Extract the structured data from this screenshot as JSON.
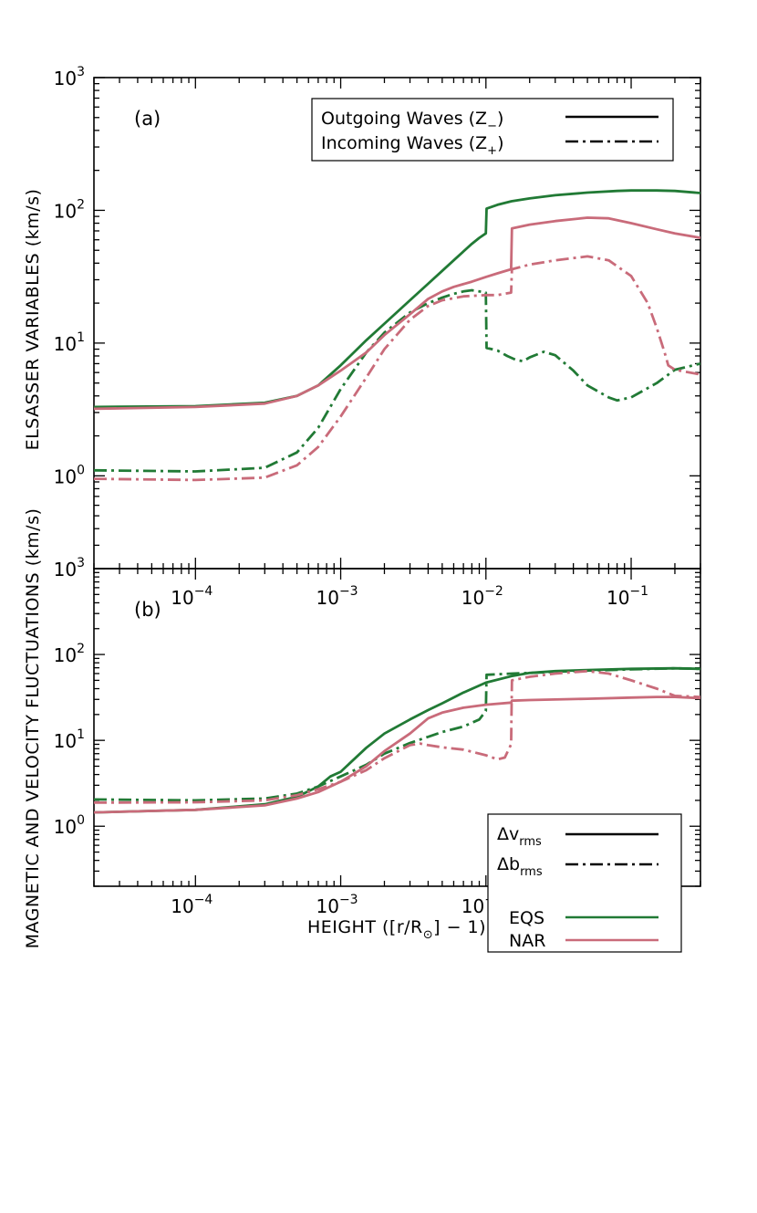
{
  "chart_data": [
    {
      "panel": "a",
      "type": "line",
      "panel_label": "(a)",
      "ylabel": "ELSASSER VARIABLES (km/s)",
      "xlabel": "",
      "xscale": "log",
      "yscale": "log",
      "xlim": [
        2e-05,
        0.3
      ],
      "ylim": [
        0.2,
        1000
      ],
      "y_tick_labels": [
        {
          "base": "10",
          "exp": "0"
        },
        {
          "base": "10",
          "exp": "1"
        },
        {
          "base": "10",
          "exp": "2"
        },
        {
          "base": "10",
          "exp": "3"
        }
      ],
      "x_tick_labels": [
        {
          "base": "10",
          "exp": "-4"
        },
        {
          "base": "10",
          "exp": "-3"
        },
        {
          "base": "10",
          "exp": "-2"
        },
        {
          "base": "10",
          "exp": "-1"
        }
      ],
      "legend": {
        "placement": "top-right",
        "entries": [
          {
            "text": "Outgoing Waves (Z",
            "sub": "−",
            "tail": ")",
            "linestyle": "solid"
          },
          {
            "text": "Incoming Waves (Z",
            "sub": "+",
            "tail": ")",
            "linestyle": "dashdot"
          }
        ]
      },
      "series": [
        {
          "model": "EQS",
          "kind": "Z-",
          "color": "#217a35",
          "linestyle": "solid",
          "x": [
            2e-05,
            0.0001,
            0.0003,
            0.0005,
            0.0007,
            0.001,
            0.0015,
            0.002,
            0.003,
            0.004,
            0.005,
            0.006,
            0.007,
            0.008,
            0.009,
            0.00999,
            0.0101,
            0.012,
            0.015,
            0.02,
            0.03,
            0.05,
            0.08,
            0.1,
            0.15,
            0.2,
            0.3
          ],
          "y": [
            3.3,
            3.35,
            3.55,
            4.0,
            4.8,
            6.8,
            10.5,
            14.0,
            21.0,
            28.0,
            35.0,
            42.0,
            49.0,
            56.0,
            62.0,
            67.0,
            103.0,
            110.0,
            117.0,
            123.0,
            130.0,
            136.0,
            140.0,
            141.0,
            141.0,
            140.0,
            135.0
          ]
        },
        {
          "model": "EQS",
          "kind": "Z+",
          "color": "#217a35",
          "linestyle": "dashdot",
          "x": [
            2e-05,
            0.0001,
            0.0003,
            0.0005,
            0.0007,
            0.001,
            0.0015,
            0.002,
            0.003,
            0.004,
            0.005,
            0.006,
            0.007,
            0.008,
            0.009,
            0.00999,
            0.0101,
            0.012,
            0.014,
            0.016,
            0.018,
            0.02,
            0.025,
            0.03,
            0.04,
            0.05,
            0.07,
            0.08,
            0.1,
            0.15,
            0.2,
            0.3
          ],
          "y": [
            1.1,
            1.08,
            1.15,
            1.5,
            2.3,
            4.5,
            8.5,
            12.0,
            17.0,
            20.0,
            22.0,
            23.5,
            24.5,
            25.0,
            24.5,
            24.0,
            9.2,
            8.8,
            8.0,
            7.5,
            7.3,
            7.8,
            8.6,
            8.1,
            6.2,
            4.8,
            3.9,
            3.7,
            3.9,
            5.0,
            6.3,
            7.0
          ]
        },
        {
          "model": "NAR",
          "kind": "Z-",
          "color": "#c96b7a",
          "linestyle": "solid",
          "x": [
            2e-05,
            0.0001,
            0.0003,
            0.0005,
            0.0007,
            0.001,
            0.0015,
            0.002,
            0.003,
            0.004,
            0.005,
            0.006,
            0.008,
            0.01,
            0.012,
            0.0149,
            0.0151,
            0.02,
            0.03,
            0.05,
            0.07,
            0.1,
            0.15,
            0.2,
            0.3
          ],
          "y": [
            3.2,
            3.3,
            3.5,
            4.0,
            4.8,
            6.2,
            8.5,
            11.5,
            16.5,
            21.5,
            24.5,
            26.5,
            29.0,
            31.5,
            33.5,
            36.0,
            73.0,
            78.0,
            83.0,
            88.0,
            87.0,
            80.0,
            72.0,
            67.0,
            62.0
          ]
        },
        {
          "model": "NAR",
          "kind": "Z+",
          "color": "#c96b7a",
          "linestyle": "dashdot",
          "x": [
            2e-05,
            0.0001,
            0.0003,
            0.0005,
            0.0007,
            0.001,
            0.0015,
            0.002,
            0.003,
            0.004,
            0.005,
            0.007,
            0.01,
            0.012,
            0.0149,
            0.0151,
            0.02,
            0.03,
            0.05,
            0.07,
            0.1,
            0.13,
            0.15,
            0.17,
            0.18,
            0.2,
            0.3
          ],
          "y": [
            0.95,
            0.93,
            0.97,
            1.2,
            1.65,
            2.8,
            5.5,
            9.0,
            15.0,
            19.0,
            21.0,
            22.5,
            23.0,
            23.0,
            24.0,
            36.0,
            39.0,
            42.0,
            45.0,
            42.0,
            32.0,
            20.0,
            13.0,
            8.5,
            6.8,
            6.3,
            5.8
          ]
        }
      ]
    },
    {
      "panel": "b",
      "type": "line",
      "panel_label": "(b)",
      "ylabel": "MAGNETIC AND VELOCITY FLUCTUATIONS (km/s)",
      "xlabel": "HEIGHT ([r/R",
      "xlabel_sun": "⊙",
      "xlabel_tail": "] − 1)",
      "xscale": "log",
      "yscale": "log",
      "xlim": [
        2e-05,
        0.3
      ],
      "ylim": [
        0.2,
        1000
      ],
      "y_tick_labels": [
        {
          "base": "10",
          "exp": "0"
        },
        {
          "base": "10",
          "exp": "1"
        },
        {
          "base": "10",
          "exp": "2"
        },
        {
          "base": "10",
          "exp": "3"
        }
      ],
      "x_tick_labels": [
        {
          "base": "10",
          "exp": "-4"
        },
        {
          "base": "10",
          "exp": "-3"
        },
        {
          "base": "10",
          "exp": "-2"
        },
        {
          "base": "10",
          "exp": "-1"
        }
      ],
      "legend_style": {
        "placement": "bottom-right",
        "entries": [
          {
            "text": "Δv",
            "sub": "rms",
            "linestyle": "solid"
          },
          {
            "text": "Δb",
            "sub": "rms",
            "linestyle": "dashdot"
          }
        ]
      },
      "legend_model": {
        "entries": [
          {
            "text": "EQS",
            "color": "#217a35"
          },
          {
            "text": "NAR",
            "color": "#c96b7a"
          }
        ]
      },
      "series": [
        {
          "model": "EQS",
          "kind": "dv_rms",
          "color": "#217a35",
          "linestyle": "solid",
          "x": [
            2e-05,
            0.0001,
            0.0003,
            0.0005,
            0.0007,
            0.00085,
            0.001,
            0.0015,
            0.002,
            0.003,
            0.004,
            0.005,
            0.007,
            0.01,
            0.015,
            0.02,
            0.03,
            0.05,
            0.1,
            0.2,
            0.3
          ],
          "y": [
            1.45,
            1.55,
            1.8,
            2.2,
            2.9,
            3.8,
            4.3,
            8.2,
            12.0,
            17.5,
            22.5,
            27.0,
            36.0,
            47.0,
            56.0,
            61.0,
            64.0,
            66.0,
            68.0,
            69.0,
            68.0
          ]
        },
        {
          "model": "EQS",
          "kind": "db_rms",
          "color": "#217a35",
          "linestyle": "dashdot",
          "x": [
            2e-05,
            0.0001,
            0.0003,
            0.0005,
            0.0007,
            0.001,
            0.0015,
            0.002,
            0.003,
            0.004,
            0.005,
            0.007,
            0.009,
            0.00999,
            0.0101,
            0.015,
            0.02,
            0.03,
            0.05,
            0.1,
            0.2,
            0.3
          ],
          "y": [
            2.05,
            2.0,
            2.1,
            2.4,
            2.9,
            3.8,
            5.2,
            7.0,
            9.3,
            11.0,
            12.5,
            14.5,
            17.5,
            22.0,
            58.0,
            60.0,
            61.0,
            63.0,
            65.0,
            67.0,
            69.0,
            68.0
          ]
        },
        {
          "model": "NAR",
          "kind": "dv_rms",
          "color": "#c96b7a",
          "linestyle": "solid",
          "x": [
            2e-05,
            0.0001,
            0.0003,
            0.0005,
            0.0007,
            0.001,
            0.0015,
            0.002,
            0.003,
            0.004,
            0.005,
            0.007,
            0.01,
            0.0149,
            0.0151,
            0.02,
            0.05,
            0.1,
            0.15,
            0.2,
            0.3
          ],
          "y": [
            1.45,
            1.55,
            1.75,
            2.1,
            2.5,
            3.3,
            5.0,
            7.5,
            12.0,
            18.0,
            21.0,
            24.0,
            26.0,
            27.5,
            29.0,
            29.5,
            30.5,
            31.5,
            32.0,
            32.0,
            31.0
          ]
        },
        {
          "model": "NAR",
          "kind": "db_rms",
          "color": "#c96b7a",
          "linestyle": "dashdot",
          "x": [
            2e-05,
            0.0001,
            0.0003,
            0.0005,
            0.0007,
            0.001,
            0.0015,
            0.002,
            0.003,
            0.0035,
            0.004,
            0.005,
            0.007,
            0.01,
            0.012,
            0.0135,
            0.0149,
            0.0151,
            0.02,
            0.03,
            0.05,
            0.07,
            0.1,
            0.15,
            0.2,
            0.3
          ],
          "y": [
            1.88,
            1.9,
            2.0,
            2.3,
            2.7,
            3.3,
            4.5,
            6.2,
            8.8,
            9.2,
            8.8,
            8.3,
            7.8,
            6.7,
            6.0,
            6.3,
            9.0,
            50.0,
            55.0,
            60.0,
            64.0,
            60.0,
            50.0,
            40.0,
            33.0,
            32.0
          ]
        }
      ]
    }
  ]
}
